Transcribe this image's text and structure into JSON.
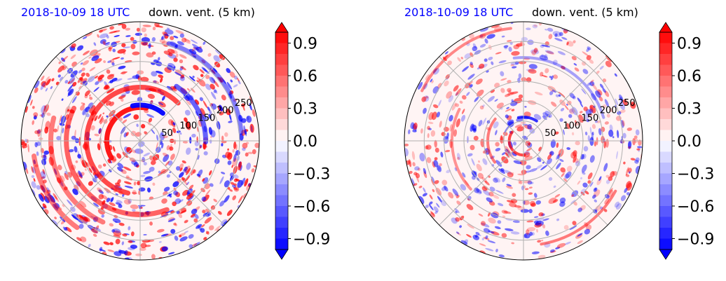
{
  "colors": {
    "title_date": "#0000ff",
    "title_var": "#000000",
    "positive": "#ff0000",
    "negative": "#0000ff",
    "grid": "#b0b0b0"
  },
  "colorbar": {
    "ticks": [
      "0.9",
      "0.6",
      "0.3",
      "0.0",
      "−0.3",
      "−0.6",
      "−0.9"
    ],
    "vmin": -1.0,
    "vmax": 1.0,
    "extend": "both",
    "cmap": "bwr"
  },
  "chart_data": [
    {
      "type": "heatmap",
      "projection": "polar",
      "title_left": "2018-10-09 18 UTC",
      "title_right": "down. vent. (5 km)",
      "radial_ticks": [
        "50",
        "100",
        "150",
        "200",
        "250"
      ],
      "r_max": 300,
      "grid": true,
      "colorbar_ticks": [
        0.9,
        0.6,
        0.3,
        0.0,
        -0.3,
        -0.6,
        -0.9
      ],
      "clim": [
        -1.0,
        1.0
      ]
    },
    {
      "type": "heatmap",
      "projection": "polar",
      "title_left": "2018-10-09 18 UTC",
      "title_right": "down. vent. (5 km)",
      "radial_ticks": [
        "50",
        "100",
        "150",
        "200",
        "250"
      ],
      "r_max": 300,
      "grid": true,
      "colorbar_ticks": [
        0.9,
        0.6,
        0.3,
        0.0,
        -0.3,
        -0.6,
        -0.9
      ],
      "clim": [
        -1.0,
        1.0
      ]
    }
  ]
}
